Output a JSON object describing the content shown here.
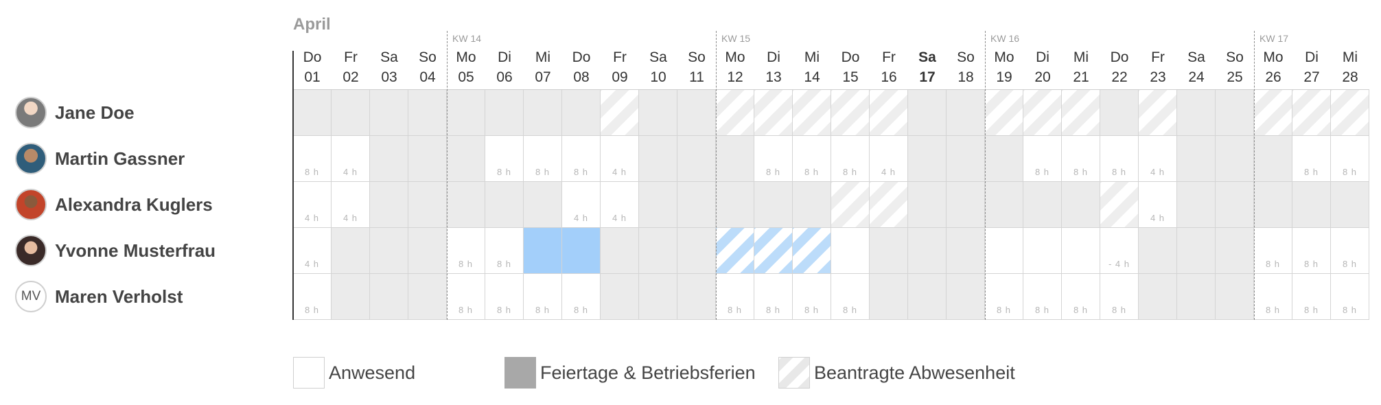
{
  "calendar": {
    "month": "April",
    "weeks": [
      {
        "label": "KW 14",
        "start_day": 5
      },
      {
        "label": "KW 15",
        "start_day": 12
      },
      {
        "label": "KW 16",
        "start_day": 19
      },
      {
        "label": "KW 17",
        "start_day": 26
      }
    ],
    "days": [
      {
        "name": "Do",
        "date": "01"
      },
      {
        "name": "Fr",
        "date": "02"
      },
      {
        "name": "Sa",
        "date": "03"
      },
      {
        "name": "So",
        "date": "04"
      },
      {
        "name": "Mo",
        "date": "05"
      },
      {
        "name": "Di",
        "date": "06"
      },
      {
        "name": "Mi",
        "date": "07"
      },
      {
        "name": "Do",
        "date": "08"
      },
      {
        "name": "Fr",
        "date": "09"
      },
      {
        "name": "Sa",
        "date": "10"
      },
      {
        "name": "So",
        "date": "11"
      },
      {
        "name": "Mo",
        "date": "12"
      },
      {
        "name": "Di",
        "date": "13"
      },
      {
        "name": "Mi",
        "date": "14"
      },
      {
        "name": "Do",
        "date": "15"
      },
      {
        "name": "Fr",
        "date": "16"
      },
      {
        "name": "Sa",
        "date": "17",
        "today": true
      },
      {
        "name": "So",
        "date": "18"
      },
      {
        "name": "Mo",
        "date": "19"
      },
      {
        "name": "Di",
        "date": "20"
      },
      {
        "name": "Mi",
        "date": "21"
      },
      {
        "name": "Do",
        "date": "22"
      },
      {
        "name": "Fr",
        "date": "23"
      },
      {
        "name": "Sa",
        "date": "24"
      },
      {
        "name": "So",
        "date": "25"
      },
      {
        "name": "Mo",
        "date": "26"
      },
      {
        "name": "Di",
        "date": "27"
      },
      {
        "name": "Mi",
        "date": "28"
      }
    ]
  },
  "people": [
    {
      "name": "Jane Doe",
      "avatar_icon": "user-photo-icon",
      "initials": "",
      "cells": [
        {
          "s": "off"
        },
        {
          "s": "off"
        },
        {
          "s": "off"
        },
        {
          "s": "off"
        },
        {
          "s": "off"
        },
        {
          "s": "off"
        },
        {
          "s": "off"
        },
        {
          "s": "off"
        },
        {
          "s": "req"
        },
        {
          "s": "off"
        },
        {
          "s": "off"
        },
        {
          "s": "req"
        },
        {
          "s": "req"
        },
        {
          "s": "req"
        },
        {
          "s": "req"
        },
        {
          "s": "req"
        },
        {
          "s": "off"
        },
        {
          "s": "off"
        },
        {
          "s": "req"
        },
        {
          "s": "req"
        },
        {
          "s": "req"
        },
        {
          "s": "off"
        },
        {
          "s": "req"
        },
        {
          "s": "off"
        },
        {
          "s": "off"
        },
        {
          "s": "req"
        },
        {
          "s": "req"
        },
        {
          "s": "req"
        }
      ]
    },
    {
      "name": "Martin Gassner",
      "avatar_icon": "user-photo-icon",
      "initials": "",
      "cells": [
        {
          "s": "w",
          "h": "8 h"
        },
        {
          "s": "w",
          "h": "4 h"
        },
        {
          "s": "off"
        },
        {
          "s": "off"
        },
        {
          "s": "off"
        },
        {
          "s": "w",
          "h": "8 h"
        },
        {
          "s": "w",
          "h": "8 h"
        },
        {
          "s": "w",
          "h": "8 h"
        },
        {
          "s": "w",
          "h": "4 h"
        },
        {
          "s": "off"
        },
        {
          "s": "off"
        },
        {
          "s": "off"
        },
        {
          "s": "w",
          "h": "8 h"
        },
        {
          "s": "w",
          "h": "8 h"
        },
        {
          "s": "w",
          "h": "8 h"
        },
        {
          "s": "w",
          "h": "4 h"
        },
        {
          "s": "off"
        },
        {
          "s": "off"
        },
        {
          "s": "off"
        },
        {
          "s": "w",
          "h": "8 h"
        },
        {
          "s": "w",
          "h": "8 h"
        },
        {
          "s": "w",
          "h": "8 h"
        },
        {
          "s": "w",
          "h": "4 h"
        },
        {
          "s": "off"
        },
        {
          "s": "off"
        },
        {
          "s": "off"
        },
        {
          "s": "w",
          "h": "8 h"
        },
        {
          "s": "w",
          "h": "8 h"
        }
      ]
    },
    {
      "name": "Alexandra Kuglers",
      "avatar_icon": "user-photo-icon",
      "initials": "",
      "cells": [
        {
          "s": "w",
          "h": "4 h"
        },
        {
          "s": "w",
          "h": "4 h"
        },
        {
          "s": "off"
        },
        {
          "s": "off"
        },
        {
          "s": "off"
        },
        {
          "s": "off"
        },
        {
          "s": "off"
        },
        {
          "s": "w",
          "h": "4 h"
        },
        {
          "s": "w",
          "h": "4 h"
        },
        {
          "s": "off"
        },
        {
          "s": "off"
        },
        {
          "s": "off"
        },
        {
          "s": "off"
        },
        {
          "s": "off"
        },
        {
          "s": "req"
        },
        {
          "s": "req"
        },
        {
          "s": "off"
        },
        {
          "s": "off"
        },
        {
          "s": "off"
        },
        {
          "s": "off"
        },
        {
          "s": "off"
        },
        {
          "s": "req"
        },
        {
          "s": "w",
          "h": "4 h"
        },
        {
          "s": "off"
        },
        {
          "s": "off"
        },
        {
          "s": "off"
        },
        {
          "s": "off"
        },
        {
          "s": "off"
        }
      ]
    },
    {
      "name": "Yvonne Musterfrau",
      "avatar_icon": "user-photo-icon",
      "initials": "",
      "cells": [
        {
          "s": "w",
          "h": "4 h"
        },
        {
          "s": "off"
        },
        {
          "s": "off"
        },
        {
          "s": "off"
        },
        {
          "s": "w",
          "h": "8 h"
        },
        {
          "s": "w",
          "h": "8 h"
        },
        {
          "s": "abs"
        },
        {
          "s": "abs"
        },
        {
          "s": "off"
        },
        {
          "s": "off"
        },
        {
          "s": "off"
        },
        {
          "s": "abs-req"
        },
        {
          "s": "abs-req"
        },
        {
          "s": "abs-req"
        },
        {
          "s": "w"
        },
        {
          "s": "off"
        },
        {
          "s": "off"
        },
        {
          "s": "off"
        },
        {
          "s": "w"
        },
        {
          "s": "w"
        },
        {
          "s": "w"
        },
        {
          "s": "w",
          "h": "- 4 h"
        },
        {
          "s": "off"
        },
        {
          "s": "off"
        },
        {
          "s": "off"
        },
        {
          "s": "w",
          "h": "8 h"
        },
        {
          "s": "w",
          "h": "8 h"
        },
        {
          "s": "w",
          "h": "8 h"
        }
      ]
    },
    {
      "name": "Maren Verholst",
      "avatar_icon": "initials-avatar-icon",
      "initials": "MV",
      "cells": [
        {
          "s": "w",
          "h": "8 h"
        },
        {
          "s": "off"
        },
        {
          "s": "off"
        },
        {
          "s": "off"
        },
        {
          "s": "w",
          "h": "8 h"
        },
        {
          "s": "w",
          "h": "8 h"
        },
        {
          "s": "w",
          "h": "8 h"
        },
        {
          "s": "w",
          "h": "8 h"
        },
        {
          "s": "off"
        },
        {
          "s": "off"
        },
        {
          "s": "off"
        },
        {
          "s": "w",
          "h": "8 h"
        },
        {
          "s": "w",
          "h": "8 h"
        },
        {
          "s": "w",
          "h": "8 h"
        },
        {
          "s": "w",
          "h": "8 h"
        },
        {
          "s": "off"
        },
        {
          "s": "off"
        },
        {
          "s": "off"
        },
        {
          "s": "w",
          "h": "8 h"
        },
        {
          "s": "w",
          "h": "8 h"
        },
        {
          "s": "w",
          "h": "8 h"
        },
        {
          "s": "w",
          "h": "8 h"
        },
        {
          "s": "off"
        },
        {
          "s": "off"
        },
        {
          "s": "off"
        },
        {
          "s": "w",
          "h": "8 h"
        },
        {
          "s": "w",
          "h": "8 h"
        },
        {
          "s": "w",
          "h": "8 h"
        }
      ]
    }
  ],
  "legend": {
    "present": "Anwesend",
    "holidays": "Feiertage & Betriebsferien",
    "requested": "Beantragte Abwesenheit"
  },
  "colors": {
    "off_day": "#ebebeb",
    "absence": "#a3cffa",
    "holiday_swatch": "#a8a8a8",
    "hours_text": "#b6b6b6"
  }
}
